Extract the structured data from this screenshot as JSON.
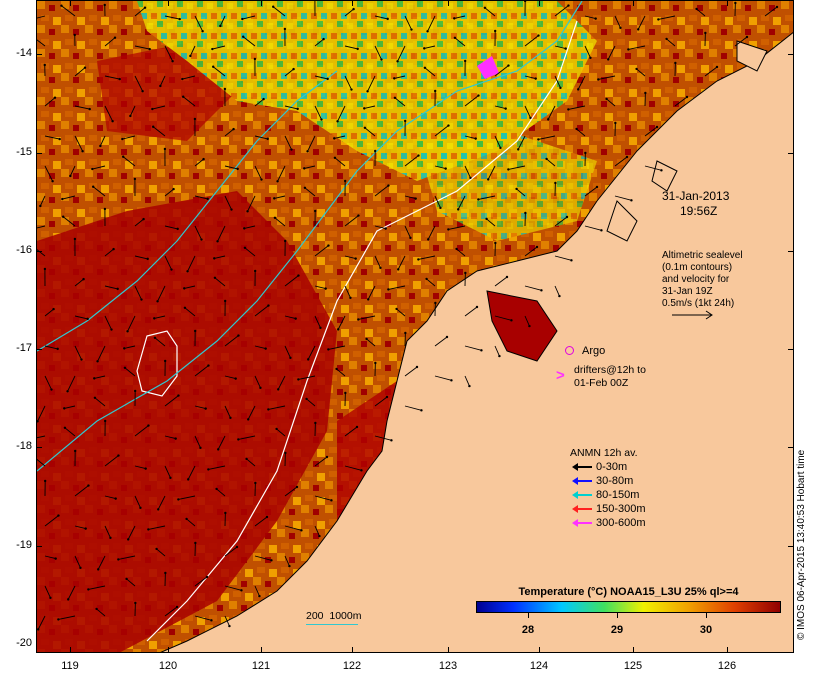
{
  "map": {
    "lat_ticks": [
      "-14",
      "-15",
      "-16",
      "-17",
      "-18",
      "-19",
      "-20"
    ],
    "lon_ticks": [
      "119",
      "120",
      "121",
      "122",
      "123",
      "124",
      "125",
      "126"
    ],
    "date_line1": "31-Jan-2013",
    "date_line2": "19:56Z",
    "altimetry_note": "Altimetric sealevel\n(0.1m contours)\nand velocity for\n31-Jan 19Z\n0.5m/s (1kt 24h)",
    "argo_label": "Argo",
    "drifters_note": "drifters@12h to\n01-Feb 00Z",
    "anmn_title": "ANMN 12h av.",
    "anmn_items": [
      {
        "label": "0-30m",
        "color": "#000000"
      },
      {
        "label": "30-80m",
        "color": "#1010ff"
      },
      {
        "label": "80-150m",
        "color": "#00d0d0"
      },
      {
        "label": "150-300m",
        "color": "#ff2020"
      },
      {
        "label": "300-600m",
        "color": "#ff30ff"
      }
    ],
    "isobath_label": "200  1000m",
    "colorbar_title": "Temperature (°C) NOAA15_L3U 25% ql>=4",
    "colorbar_ticks": [
      "28",
      "29",
      "30"
    ],
    "credit": "© IMOS 06-Apr-2015 13:40:53 Hobart time",
    "colors": {
      "land": "#f8c89c",
      "warm": "#a00000",
      "orange": "#e07800",
      "yellow": "#f0e000",
      "green": "#20c040",
      "cyan": "#20c8c8",
      "blue": "#2040ff",
      "argo": "#e000e0"
    }
  }
}
